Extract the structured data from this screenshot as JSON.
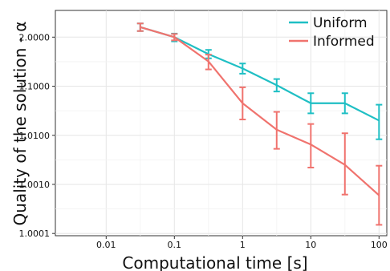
{
  "chart_data": {
    "type": "line",
    "title": "",
    "xlabel": "Computational time [s]",
    "ylabel": "Quality of the solution - α",
    "x_scale": "log",
    "y_scale": "log (of α − 1)",
    "x_ticks": [
      {
        "value": 0.01,
        "label": "0.01"
      },
      {
        "value": 0.1,
        "label": "0.1"
      },
      {
        "value": 1,
        "label": "1"
      },
      {
        "value": 10,
        "label": "10"
      },
      {
        "value": 100,
        "label": "100"
      }
    ],
    "y_ticks": [
      {
        "value": 2.0,
        "label": "2.0000"
      },
      {
        "value": 1.1,
        "label": "1.1000"
      },
      {
        "value": 1.01,
        "label": "1.0100"
      },
      {
        "value": 1.001,
        "label": "1.0010"
      },
      {
        "value": 1.0001,
        "label": "1.0001"
      }
    ],
    "xlim": [
      0.0018,
      130
    ],
    "ylim": [
      1.00009,
      4.5
    ],
    "grid": true,
    "legend_position": "top-right",
    "series": [
      {
        "name": "Uniform",
        "color": "#1fbfc4",
        "x": [
          0.0316,
          0.1,
          0.316,
          1,
          3.16,
          10,
          31.6,
          100
        ],
        "y": [
          2.6,
          2.0,
          1.45,
          1.23,
          1.105,
          1.045,
          1.045,
          1.02
        ],
        "err_low": [
          2.33,
          1.82,
          1.37,
          1.18,
          1.078,
          1.028,
          1.028,
          1.0083
        ],
        "err_high": [
          2.9,
          2.18,
          1.55,
          1.29,
          1.14,
          1.072,
          1.072,
          1.042
        ]
      },
      {
        "name": "Informed",
        "color": "#f0736e",
        "x": [
          0.0316,
          0.1,
          0.316,
          1,
          3.16,
          10,
          31.6,
          100
        ],
        "y": [
          2.6,
          2.0,
          1.32,
          1.045,
          1.013,
          1.0065,
          1.0025,
          1.0006
        ],
        "err_low": [
          2.33,
          1.86,
          1.22,
          1.021,
          1.0053,
          1.0022,
          1.00062,
          1.00015
        ],
        "err_high": [
          2.9,
          2.16,
          1.44,
          1.095,
          1.03,
          1.017,
          1.011,
          1.0024
        ]
      }
    ]
  }
}
